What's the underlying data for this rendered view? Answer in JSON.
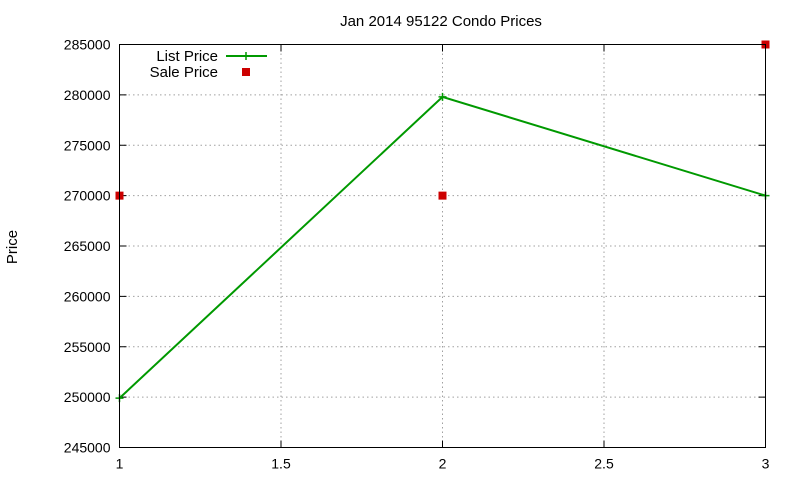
{
  "chart_data": {
    "type": "line",
    "title": "Jan 2014 95122 Condo Prices",
    "xlabel": "",
    "ylabel": "Price",
    "xlim": [
      1,
      3
    ],
    "ylim": [
      245000,
      285000
    ],
    "xticks": [
      "1",
      "1.5",
      "2",
      "2.5",
      "3"
    ],
    "yticks": [
      "245000",
      "250000",
      "255000",
      "260000",
      "265000",
      "270000",
      "275000",
      "280000",
      "285000"
    ],
    "grid": true,
    "legend_position": "top-left",
    "series": [
      {
        "name": "List Price",
        "style": "line-points",
        "marker": "plus",
        "color": "#009900",
        "points": [
          [
            1,
            249900
          ],
          [
            2,
            279800
          ],
          [
            3,
            270000
          ]
        ]
      },
      {
        "name": "Sale Price",
        "style": "points",
        "marker": "square",
        "color": "#cc0000",
        "points": [
          [
            1,
            270000
          ],
          [
            2,
            270000
          ],
          [
            3,
            285000
          ]
        ]
      }
    ]
  }
}
